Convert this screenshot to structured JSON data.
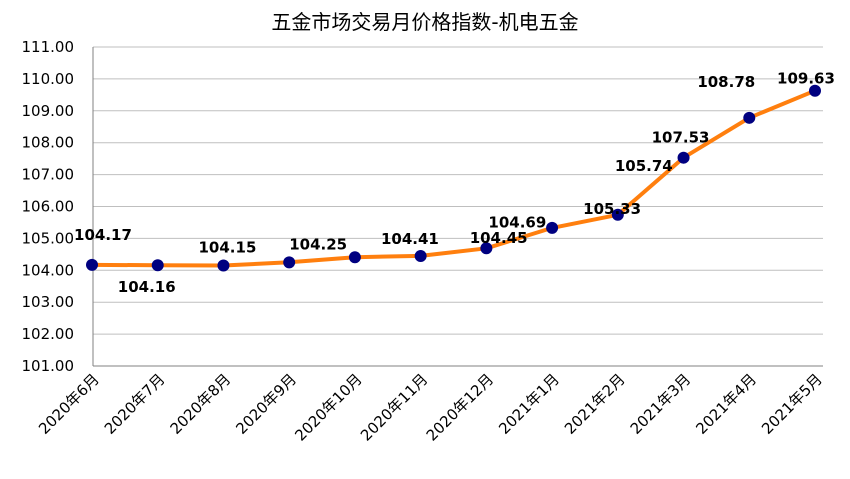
{
  "chart_data": {
    "type": "line",
    "title": "五金市场交易月价格指数-机电五金",
    "xlabel": "",
    "ylabel": "",
    "ylim": [
      101,
      111
    ],
    "yticks": [
      "101.00",
      "102.00",
      "103.00",
      "104.00",
      "105.00",
      "106.00",
      "107.00",
      "108.00",
      "109.00",
      "110.00",
      "111.00"
    ],
    "categories": [
      "2020年6月",
      "2020年7月",
      "2020年8月",
      "2020年9月",
      "2020年10月",
      "2020年11月",
      "2020年12月",
      "2021年1月",
      "2021年2月",
      "2021年3月",
      "2021年4月",
      "2021年5月"
    ],
    "series": [
      {
        "values": [
          104.17,
          104.16,
          104.15,
          104.25,
          104.41,
          104.45,
          104.69,
          105.33,
          105.74,
          107.53,
          108.78,
          109.63
        ],
        "labels": [
          "104.17",
          "104.16",
          "104.15",
          "104.25",
          "104.41",
          "104.45",
          "104.69",
          "105.33",
          "105.74",
          "107.53",
          "108.78",
          "109.63"
        ],
        "line_color": "#ff7f0e",
        "marker_color": "#000080"
      }
    ],
    "grid": true,
    "legend": "none"
  }
}
